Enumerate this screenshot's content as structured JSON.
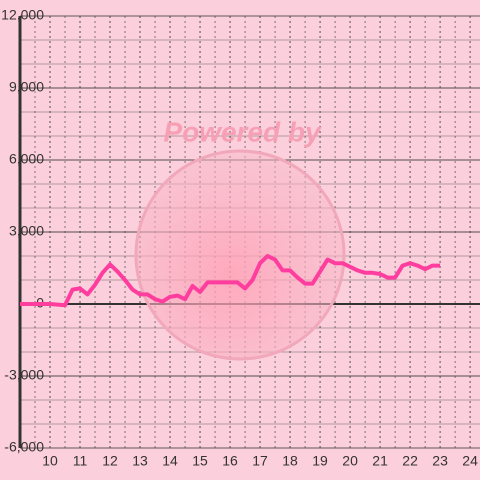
{
  "chart_data": {
    "type": "line",
    "watermark": "Powered by",
    "x": [
      9,
      9.5,
      10,
      10.5,
      10.75,
      11,
      11.25,
      11.5,
      11.75,
      12,
      12.25,
      12.5,
      12.75,
      13,
      13.25,
      13.5,
      13.75,
      14,
      14.25,
      14.5,
      14.75,
      15,
      15.25,
      15.5,
      15.75,
      16,
      16.25,
      16.5,
      16.75,
      17,
      17.25,
      17.5,
      17.75,
      18,
      18.25,
      18.5,
      18.75,
      19,
      19.25,
      19.5,
      19.75,
      20,
      20.25,
      20.5,
      20.75,
      21,
      21.25,
      21.5,
      21.75,
      22,
      22.25,
      22.5,
      22.75,
      23
    ],
    "series": [
      {
        "color": "#ff3d9e",
        "values": [
          0,
          0,
          0,
          -50,
          600,
          650,
          400,
          800,
          1300,
          1650,
          1350,
          1000,
          600,
          400,
          400,
          200,
          100,
          300,
          350,
          200,
          750,
          500,
          900,
          900,
          900,
          900,
          900,
          650,
          1000,
          1700,
          2000,
          1850,
          1400,
          1400,
          1100,
          850,
          850,
          1350,
          1850,
          1700,
          1700,
          1550,
          1400,
          1300,
          1300,
          1250,
          1100,
          1100,
          1600,
          1700,
          1600,
          1450,
          1600,
          1600
        ]
      }
    ],
    "xlim": [
      9,
      24.33
    ],
    "xticks": [
      10,
      11,
      12,
      13,
      14,
      15,
      16,
      17,
      18,
      19,
      20,
      21,
      22,
      23,
      24
    ],
    "ylim": [
      -6000,
      12000
    ],
    "yticks": [
      {
        "value": -6000,
        "label": "-6,000"
      },
      {
        "value": -3000,
        "label": "-3,000"
      },
      0,
      {
        "value": 3000,
        "label": "3,000"
      },
      {
        "value": 6000,
        "label": "6,000"
      },
      {
        "value": 9000,
        "label": "9,000"
      },
      {
        "value": 12000,
        "label": "12,000"
      }
    ],
    "grid": true
  }
}
